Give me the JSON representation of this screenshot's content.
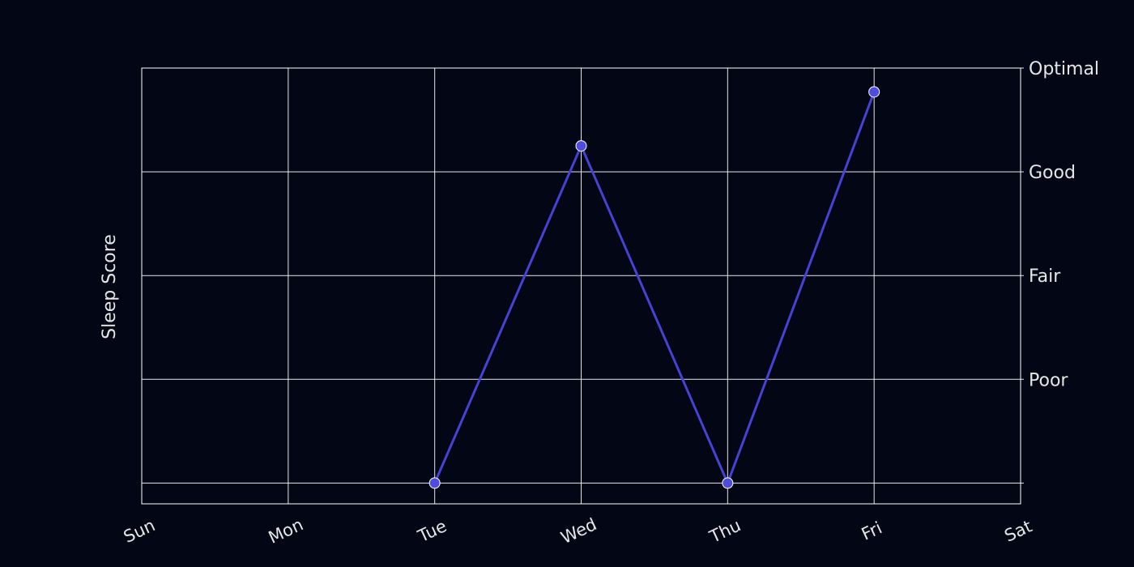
{
  "chart_data": {
    "type": "line",
    "title": "",
    "xlabel": "",
    "ylabel": "Sleep Score",
    "categories": [
      "Sun",
      "Mon",
      "Tue",
      "Wed",
      "Thu",
      "Fri",
      "Sat"
    ],
    "y_tick_labels": [
      "Poor",
      "Fair",
      "Good",
      "Optimal"
    ],
    "y_tick_values": [
      1,
      2,
      3,
      4
    ],
    "ylim": [
      -0.2,
      4
    ],
    "grid": true,
    "legend": "none",
    "series": [
      {
        "points": [
          {
            "x": "Tue",
            "y": 0
          },
          {
            "x": "Wed",
            "y": 3.25
          },
          {
            "x": "Thu",
            "y": 0
          },
          {
            "x": "Fri",
            "y": 3.77
          }
        ]
      }
    ],
    "colors": {
      "background": "#030615",
      "line": "#4542d6",
      "marker_fill": "#4f4ce0",
      "marker_edge": "#ffffff",
      "grid": "#ffffff",
      "text": "#e6e6e6"
    }
  }
}
